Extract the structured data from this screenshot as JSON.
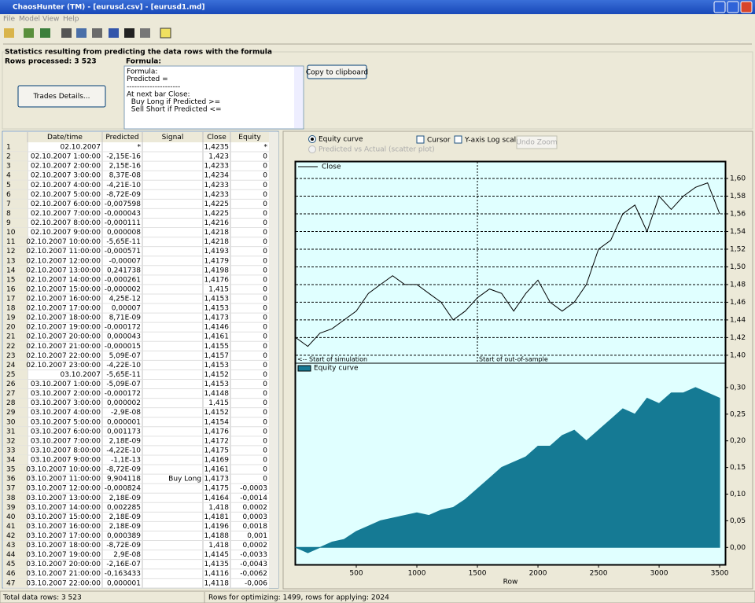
{
  "window": {
    "title": "ChaosHunter (TM) - [eurusd.csv] - [eurusd1.md]",
    "menu": [
      "File",
      "Model",
      "View",
      "Help"
    ]
  },
  "panel": {
    "title": "Statistics resulting from predicting the data rows with the formula",
    "rows_processed": "Rows processed: 3 523",
    "formula_label": "Formula:",
    "formula_lines": [
      "Formula:",
      "Predicted =",
      "---------------------",
      "At next bar Close:",
      "  Buy Long if Predicted >=",
      "  Sell Short if Predicted <="
    ],
    "copy_button": "Copy to clipboard",
    "trades_button": "Trades Details..."
  },
  "table": {
    "columns": [
      "Date/time",
      "Predicted",
      "Signal",
      "Close",
      "Equity"
    ],
    "rows": [
      [
        "1",
        "02.10.2007",
        "*",
        null,
        "1,4235",
        "*"
      ],
      [
        "2",
        "02.10.2007 1:00:00",
        "-2,15E-16",
        null,
        "1,423",
        "0"
      ],
      [
        "3",
        "02.10.2007 2:00:00",
        "2,15E-16",
        null,
        "1,4233",
        "0"
      ],
      [
        "4",
        "02.10.2007 3:00:00",
        "8,37E-08",
        null,
        "1,4234",
        "0"
      ],
      [
        "5",
        "02.10.2007 4:00:00",
        "-4,21E-10",
        null,
        "1,4233",
        "0"
      ],
      [
        "6",
        "02.10.2007 5:00:00",
        "-8,72E-09",
        null,
        "1,4233",
        "0"
      ],
      [
        "7",
        "02.10.2007 6:00:00",
        "-0,007598",
        null,
        "1,4225",
        "0"
      ],
      [
        "8",
        "02.10.2007 7:00:00",
        "-0,000043",
        null,
        "1,4225",
        "0"
      ],
      [
        "9",
        "02.10.2007 8:00:00",
        "-0,000111",
        null,
        "1,4216",
        "0"
      ],
      [
        "10",
        "02.10.2007 9:00:00",
        "0,000008",
        null,
        "1,4218",
        "0"
      ],
      [
        "11",
        "02.10.2007 10:00:00",
        "-5,65E-11",
        null,
        "1,4218",
        "0"
      ],
      [
        "12",
        "02.10.2007 11:00:00",
        "-0,000571",
        null,
        "1,4193",
        "0"
      ],
      [
        "13",
        "02.10.2007 12:00:00",
        "-0,00007",
        null,
        "1,4179",
        "0"
      ],
      [
        "14",
        "02.10.2007 13:00:00",
        "0,241738",
        null,
        "1,4198",
        "0"
      ],
      [
        "15",
        "02.10.2007 14:00:00",
        "-0,000261",
        null,
        "1,4176",
        "0"
      ],
      [
        "16",
        "02.10.2007 15:00:00",
        "-0,000002",
        null,
        "1,415",
        "0"
      ],
      [
        "17",
        "02.10.2007 16:00:00",
        "4,25E-12",
        null,
        "1,4153",
        "0"
      ],
      [
        "18",
        "02.10.2007 17:00:00",
        "0,00007",
        null,
        "1,4153",
        "0"
      ],
      [
        "19",
        "02.10.2007 18:00:00",
        "8,71E-09",
        null,
        "1,4173",
        "0"
      ],
      [
        "20",
        "02.10.2007 19:00:00",
        "-0,000172",
        null,
        "1,4146",
        "0"
      ],
      [
        "21",
        "02.10.2007 20:00:00",
        "0,000043",
        null,
        "1,4161",
        "0"
      ],
      [
        "22",
        "02.10.2007 21:00:00",
        "-0,000015",
        null,
        "1,4155",
        "0"
      ],
      [
        "23",
        "02.10.2007 22:00:00",
        "5,09E-07",
        null,
        "1,4157",
        "0"
      ],
      [
        "24",
        "02.10.2007 23:00:00",
        "-4,22E-10",
        null,
        "1,4153",
        "0"
      ],
      [
        "25",
        "03.10.2007",
        "-5,65E-11",
        null,
        "1,4152",
        "0"
      ],
      [
        "26",
        "03.10.2007 1:00:00",
        "-5,09E-07",
        null,
        "1,4153",
        "0"
      ],
      [
        "27",
        "03.10.2007 2:00:00",
        "-0,000172",
        null,
        "1,4148",
        "0"
      ],
      [
        "28",
        "03.10.2007 3:00:00",
        "0,000002",
        null,
        "1,415",
        "0"
      ],
      [
        "29",
        "03.10.2007 4:00:00",
        "-2,9E-08",
        null,
        "1,4152",
        "0"
      ],
      [
        "30",
        "03.10.2007 5:00:00",
        "0,000001",
        null,
        "1,4154",
        "0"
      ],
      [
        "31",
        "03.10.2007 6:00:00",
        "0,001173",
        null,
        "1,4176",
        "0"
      ],
      [
        "32",
        "03.10.2007 7:00:00",
        "2,18E-09",
        null,
        "1,4172",
        "0"
      ],
      [
        "33",
        "03.10.2007 8:00:00",
        "-4,22E-10",
        null,
        "1,4175",
        "0"
      ],
      [
        "34",
        "03.10.2007 9:00:00",
        "-1,1E-13",
        null,
        "1,4169",
        "0"
      ],
      [
        "35",
        "03.10.2007 10:00:00",
        "-8,72E-09",
        null,
        "1,4161",
        "0"
      ],
      [
        "36",
        "03.10.2007 11:00:00",
        "9,904118",
        "Buy Long",
        "1,4173",
        "0"
      ],
      [
        "37",
        "03.10.2007 12:00:00",
        "-0,000824",
        null,
        "1,4175",
        "-0,0003"
      ],
      [
        "38",
        "03.10.2007 13:00:00",
        "2,18E-09",
        null,
        "1,4164",
        "-0,0014"
      ],
      [
        "39",
        "03.10.2007 14:00:00",
        "0,002285",
        null,
        "1,418",
        "0,0002"
      ],
      [
        "40",
        "03.10.2007 15:00:00",
        "2,18E-09",
        null,
        "1,4181",
        "0,0003"
      ],
      [
        "41",
        "03.10.2007 16:00:00",
        "2,18E-09",
        null,
        "1,4196",
        "0,0018"
      ],
      [
        "42",
        "03.10.2007 17:00:00",
        "0,000389",
        null,
        "1,4188",
        "0,001"
      ],
      [
        "43",
        "03.10.2007 18:00:00",
        "-8,72E-09",
        null,
        "1,418",
        "0,0002"
      ],
      [
        "44",
        "03.10.2007 19:00:00",
        "2,9E-08",
        null,
        "1,4145",
        "-0,0033"
      ],
      [
        "45",
        "03.10.2007 20:00:00",
        "-2,16E-07",
        null,
        "1,4135",
        "-0,0043"
      ],
      [
        "46",
        "03.10.2007 21:00:00",
        "-0,163433",
        null,
        "1,4116",
        "-0,0062"
      ],
      [
        "47",
        "03.10.2007 22:00:00",
        "0,000001",
        null,
        "1,4118",
        "-0,006"
      ]
    ]
  },
  "options": {
    "equity_curve": "Equity curve",
    "predicted_vs_actual": "Predicted vs Actual (scatter plot)",
    "cursor": "Cursor",
    "log_scale": "Y-axis Log scale",
    "undo_zoom": "Undo Zoom"
  },
  "chart_data": [
    {
      "type": "line",
      "x": [
        0,
        100,
        200,
        300,
        400,
        500,
        600,
        700,
        800,
        900,
        1000,
        1100,
        1200,
        1300,
        1400,
        1500,
        1600,
        1700,
        1800,
        1900,
        2000,
        2100,
        2200,
        2300,
        2400,
        2500,
        2600,
        2700,
        2800,
        2900,
        3000,
        3100,
        3200,
        3300,
        3400,
        3500
      ],
      "series": [
        {
          "name": "Close",
          "color": "#000000",
          "values": [
            1.42,
            1.41,
            1.425,
            1.43,
            1.44,
            1.45,
            1.47,
            1.48,
            1.49,
            1.48,
            1.48,
            1.47,
            1.46,
            1.44,
            1.45,
            1.465,
            1.475,
            1.47,
            1.45,
            1.47,
            1.485,
            1.46,
            1.45,
            1.46,
            1.48,
            1.52,
            1.53,
            1.56,
            1.57,
            1.54,
            1.58,
            1.565,
            1.58,
            1.59,
            1.595,
            1.56
          ]
        }
      ],
      "xlim": [
        0,
        3545
      ],
      "ylim": [
        1.391,
        1.6187
      ],
      "yticks": [
        {
          "value": 1.4,
          "label": "1,40"
        },
        {
          "value": 1.42,
          "label": "1,42"
        },
        {
          "value": 1.44,
          "label": "1,44"
        },
        {
          "value": 1.46,
          "label": "1,46"
        },
        {
          "value": 1.48,
          "label": "1,48"
        },
        {
          "value": 1.5,
          "label": "1,50"
        },
        {
          "value": 1.52,
          "label": "1,52"
        },
        {
          "value": 1.54,
          "label": "1,54"
        },
        {
          "value": 1.56,
          "label": "1,56"
        },
        {
          "value": 1.58,
          "label": "1,58"
        },
        {
          "value": 1.6,
          "label": "1,60"
        }
      ],
      "grid": true,
      "background": "#e0ffff",
      "annotations": [
        {
          "text": "<-- Start of simulation",
          "x": 0
        },
        {
          "text": "Start of out-of-sample",
          "x": 1500
        }
      ]
    },
    {
      "type": "area",
      "x_label": "Row",
      "x": [
        0,
        100,
        200,
        300,
        400,
        500,
        600,
        700,
        800,
        900,
        1000,
        1100,
        1200,
        1300,
        1400,
        1500,
        1600,
        1700,
        1800,
        1900,
        2000,
        2100,
        2200,
        2300,
        2400,
        2500,
        2600,
        2700,
        2800,
        2900,
        3000,
        3100,
        3200,
        3300,
        3400,
        3500
      ],
      "series": [
        {
          "name": "Equity curve",
          "color": "#157a94",
          "values": [
            0,
            -0.01,
            0,
            0.01,
            0.015,
            0.03,
            0.04,
            0.05,
            0.055,
            0.06,
            0.065,
            0.06,
            0.07,
            0.075,
            0.09,
            0.11,
            0.13,
            0.15,
            0.16,
            0.17,
            0.19,
            0.19,
            0.21,
            0.22,
            0.2,
            0.22,
            0.24,
            0.26,
            0.25,
            0.28,
            0.27,
            0.29,
            0.29,
            0.3,
            0.29,
            0.28
          ]
        }
      ],
      "xlim": [
        0,
        3545
      ],
      "ylim": [
        -0.032,
        0.3456
      ],
      "xticks": [
        500,
        1000,
        1500,
        2000,
        2500,
        3000,
        3500
      ],
      "yticks": [
        {
          "value": 0,
          "label": "0,00"
        },
        {
          "value": 0.05,
          "label": "0,05"
        },
        {
          "value": 0.1,
          "label": "0,10"
        },
        {
          "value": 0.15,
          "label": "0,15"
        },
        {
          "value": 0.2,
          "label": "0,20"
        },
        {
          "value": 0.25,
          "label": "0,25"
        },
        {
          "value": 0.3,
          "label": "0,30"
        }
      ],
      "grid": false,
      "background": "#e0ffff"
    }
  ],
  "status": [
    "Total data rows: 3 523",
    "Rows for optimizing: 1499, rows for applying: 2024"
  ]
}
